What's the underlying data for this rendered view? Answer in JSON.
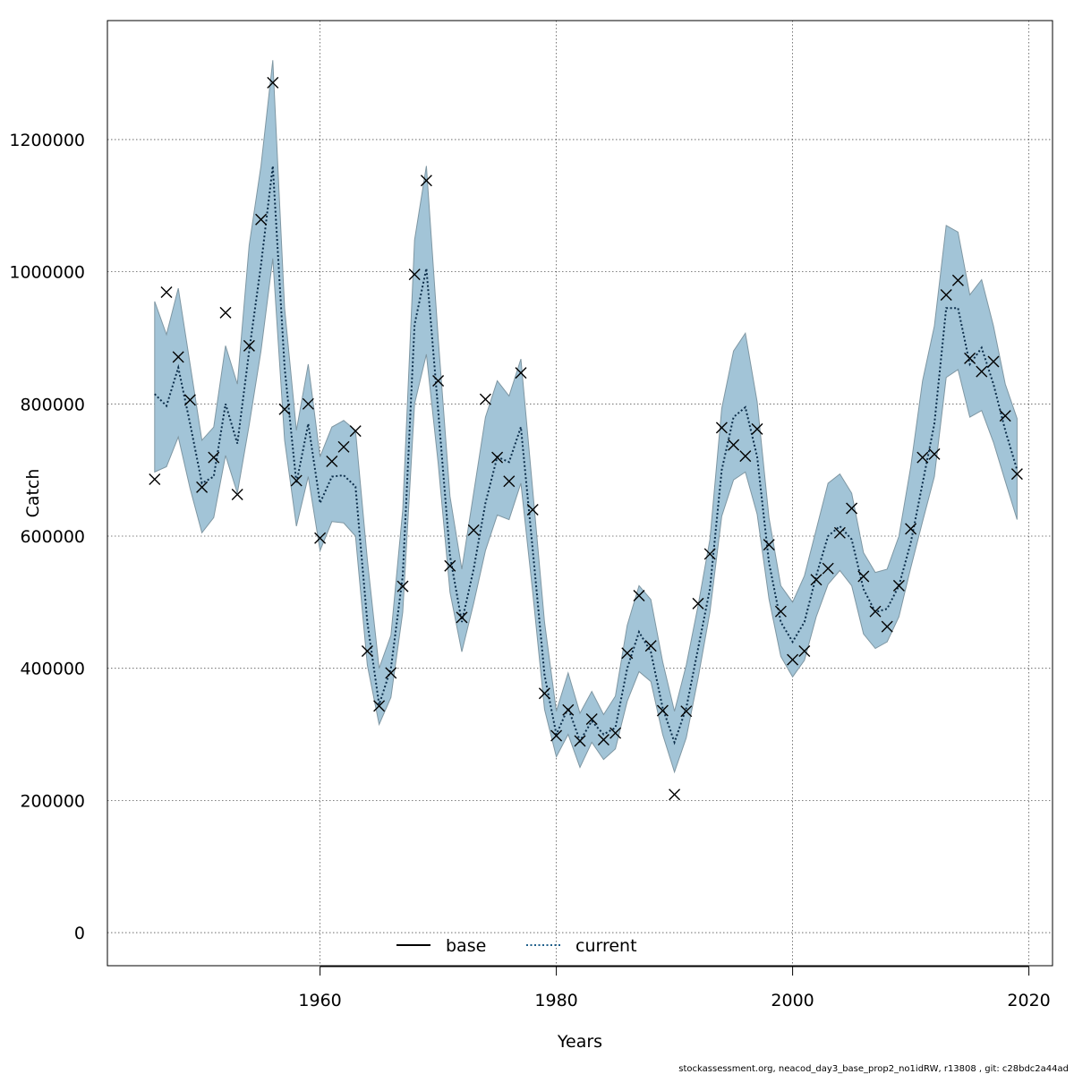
{
  "chart_data": {
    "type": "line",
    "title": "",
    "xlabel": "Years",
    "ylabel": "Catch",
    "xlim": [
      1942,
      2022
    ],
    "ylim": [
      -50000,
      1380000
    ],
    "x_ticks": [
      1960,
      1980,
      2000,
      2020
    ],
    "x_tick_labels": [
      "1960",
      "1980",
      "2000",
      "2020"
    ],
    "y_ticks": [
      0,
      200000,
      400000,
      600000,
      800000,
      1000000,
      1200000
    ],
    "y_tick_labels": [
      "0",
      "200000",
      "400000",
      "600000",
      "800000",
      "1000000",
      "1200000"
    ],
    "grid": true,
    "legend": {
      "placement": "bottom-center",
      "entries": [
        {
          "label": "base",
          "style": "solid",
          "color": "#000000"
        },
        {
          "label": "current",
          "style": "dotted",
          "color": "#1f5f8b"
        }
      ]
    },
    "colors": {
      "band_fill": "#a2c4d7",
      "band_stroke": "#7f97a3",
      "current_line": "#0b2d4a",
      "points": "#000000"
    },
    "years": [
      1946,
      1947,
      1948,
      1949,
      1950,
      1951,
      1952,
      1953,
      1954,
      1955,
      1956,
      1957,
      1958,
      1959,
      1960,
      1961,
      1962,
      1963,
      1964,
      1965,
      1966,
      1967,
      1968,
      1969,
      1970,
      1971,
      1972,
      1973,
      1974,
      1975,
      1976,
      1977,
      1978,
      1979,
      1980,
      1981,
      1982,
      1983,
      1984,
      1985,
      1986,
      1987,
      1988,
      1989,
      1990,
      1991,
      1992,
      1993,
      1994,
      1995,
      1996,
      1997,
      1998,
      1999,
      2000,
      2001,
      2002,
      2003,
      2004,
      2005,
      2006,
      2007,
      2008,
      2009,
      2010,
      2011,
      2012,
      2013,
      2014,
      2015,
      2016,
      2017,
      2018,
      2019
    ],
    "series": [
      {
        "name": "current",
        "values": [
          815000,
          797000,
          855000,
          770000,
          680000,
          690000,
          800000,
          740000,
          880000,
          1010000,
          1160000,
          855000,
          680000,
          770000,
          650000,
          690000,
          692000,
          675000,
          470000,
          345000,
          400000,
          540000,
          920000,
          1005000,
          790000,
          570000,
          470000,
          550000,
          650000,
          720000,
          712000,
          765000,
          580000,
          390000,
          300000,
          340000,
          290000,
          320000,
          300000,
          310000,
          400000,
          455000,
          425000,
          340000,
          288000,
          340000,
          430000,
          520000,
          700000,
          780000,
          795000,
          720000,
          560000,
          470000,
          440000,
          470000,
          540000,
          600000,
          615000,
          595000,
          520000,
          485000,
          490000,
          525000,
          590000,
          680000,
          770000,
          945000,
          945000,
          860000,
          885000,
          830000,
          760000,
          700000
        ]
      },
      {
        "name": "band_upper",
        "values": [
          955000,
          905000,
          975000,
          860000,
          745000,
          765000,
          888000,
          830000,
          1040000,
          1160000,
          1320000,
          945000,
          760000,
          860000,
          720000,
          765000,
          775000,
          760000,
          565000,
          400000,
          450000,
          640000,
          1048000,
          1160000,
          900000,
          660000,
          550000,
          665000,
          780000,
          835000,
          812000,
          868000,
          670000,
          470000,
          335000,
          393000,
          332000,
          365000,
          330000,
          358000,
          465000,
          525000,
          504000,
          410000,
          335000,
          405000,
          495000,
          595000,
          793000,
          880000,
          907000,
          803000,
          628000,
          525000,
          500000,
          540000,
          610000,
          680000,
          694000,
          665000,
          575000,
          545000,
          550000,
          600000,
          705000,
          835000,
          918000,
          1070000,
          1060000,
          965000,
          988000,
          918000,
          830000,
          778000
        ]
      },
      {
        "name": "band_lower",
        "values": [
          697000,
          705000,
          750000,
          672000,
          605000,
          628000,
          722000,
          665000,
          768000,
          880000,
          1020000,
          745000,
          615000,
          690000,
          578000,
          622000,
          620000,
          600000,
          405000,
          315000,
          356000,
          485000,
          800000,
          875000,
          710000,
          515000,
          425000,
          498000,
          578000,
          632000,
          625000,
          680000,
          515000,
          338000,
          266000,
          300000,
          250000,
          288000,
          262000,
          278000,
          350000,
          395000,
          380000,
          300000,
          243000,
          295000,
          385000,
          485000,
          630000,
          685000,
          697000,
          633000,
          505000,
          418000,
          387000,
          412000,
          478000,
          527000,
          548000,
          525000,
          452000,
          430000,
          440000,
          478000,
          552000,
          622000,
          690000,
          840000,
          852000,
          780000,
          790000,
          742000,
          683000,
          625000
        ]
      },
      {
        "name": "observed",
        "values": [
          686000,
          969000,
          871000,
          806000,
          674000,
          719000,
          938000,
          663000,
          888000,
          1079000,
          1286000,
          792000,
          684000,
          800000,
          597000,
          713000,
          735000,
          759000,
          426000,
          343000,
          393000,
          524000,
          996000,
          1138000,
          835000,
          555000,
          477000,
          609000,
          807000,
          719000,
          683000,
          847000,
          640000,
          362000,
          298000,
          337000,
          290000,
          323000,
          292000,
          302000,
          423000,
          510000,
          434000,
          336000,
          209000,
          335000,
          498000,
          573000,
          764000,
          738000,
          721000,
          762000,
          587000,
          486000,
          413000,
          426000,
          534000,
          551000,
          605000,
          642000,
          539000,
          486000,
          463000,
          525000,
          611000,
          719000,
          724000,
          965000,
          987000,
          869000,
          849000,
          864000,
          782000,
          694000
        ]
      }
    ]
  },
  "footer": {
    "text": "stockassessment.org, neacod_day3_base_prop2_no1idRW, r13808 , git: c28bdc2a44ad"
  }
}
